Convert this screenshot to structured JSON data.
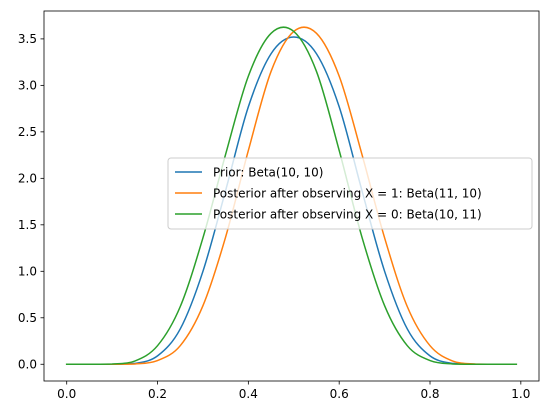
{
  "chart_data": {
    "type": "line",
    "title": "",
    "xlabel": "",
    "ylabel": "",
    "xlim": [
      -0.05,
      1.04
    ],
    "ylim": [
      -0.18,
      3.8
    ],
    "xticks": [
      0.0,
      0.2,
      0.4,
      0.6,
      0.8,
      1.0
    ],
    "xtick_labels": [
      "0.0",
      "0.2",
      "0.4",
      "0.6",
      "0.8",
      "1.0"
    ],
    "yticks": [
      0.0,
      0.5,
      1.0,
      1.5,
      2.0,
      2.5,
      3.0,
      3.5
    ],
    "ytick_labels": [
      "0.0",
      "0.5",
      "1.0",
      "1.5",
      "2.0",
      "2.5",
      "3.0",
      "3.5"
    ],
    "grid": false,
    "legend_position": "center-right",
    "x": [
      0.0,
      0.05,
      0.1,
      0.15,
      0.2,
      0.25,
      0.3,
      0.35,
      0.4,
      0.45,
      0.5,
      0.55,
      0.6,
      0.65,
      0.7,
      0.75,
      0.8,
      0.85,
      0.9,
      0.95,
      0.99
    ],
    "series": [
      {
        "name": "Prior: Beta(10, 10)",
        "color": "#1f77b4",
        "values": [
          0.0,
          0.0,
          0.0,
          0.009,
          0.09,
          0.38,
          1.0,
          1.87,
          2.77,
          3.34,
          3.52,
          3.34,
          2.77,
          1.87,
          1.0,
          0.38,
          0.09,
          0.009,
          0.0,
          0.0,
          0.0
        ]
      },
      {
        "name": "Posterior after observing X = 1: Beta(11, 10)",
        "color": "#ff7f0e",
        "values": [
          0.0,
          0.0,
          0.0,
          0.003,
          0.04,
          0.2,
          0.63,
          1.37,
          2.3,
          3.15,
          3.58,
          3.56,
          3.1,
          2.26,
          1.36,
          0.62,
          0.2,
          0.035,
          0.003,
          0.0,
          0.0
        ]
      },
      {
        "name": "Posterior after observing X = 0: Beta(10, 11)",
        "color": "#2ca02c",
        "values": [
          0.0,
          0.0,
          0.003,
          0.035,
          0.2,
          0.62,
          1.36,
          2.26,
          3.1,
          3.56,
          3.58,
          3.15,
          2.3,
          1.37,
          0.63,
          0.2,
          0.04,
          0.003,
          0.0,
          0.0,
          0.0
        ]
      }
    ]
  }
}
